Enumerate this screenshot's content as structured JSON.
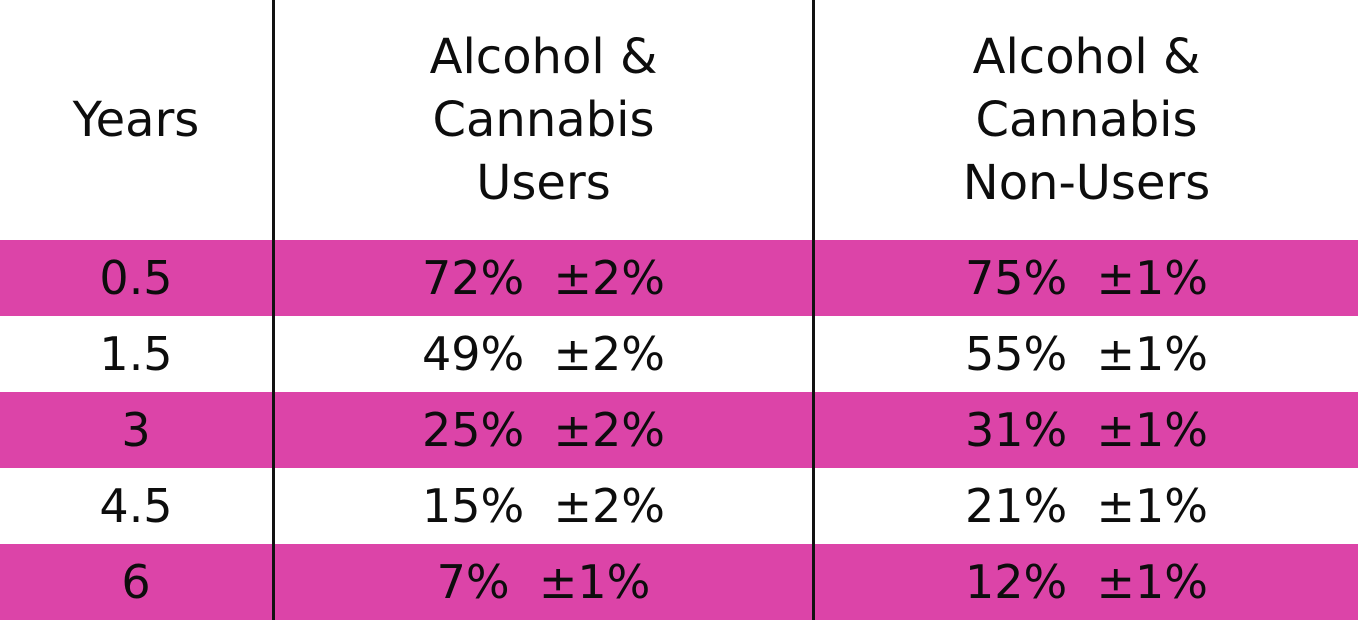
{
  "chart_data": {
    "type": "table",
    "columns": [
      "Years",
      "Alcohol & Cannabis Users",
      "Alcohol & Cannabis Non-Users"
    ],
    "rows": [
      {
        "years": "0.5",
        "users": "72%  ±2%",
        "nonusers": "75%  ±1%",
        "highlight": true
      },
      {
        "years": "1.5",
        "users": "49%  ±2%",
        "nonusers": "55%  ±1%",
        "highlight": false
      },
      {
        "years": "3",
        "users": "25%  ±2%",
        "nonusers": "31%  ±1%",
        "highlight": true
      },
      {
        "years": "4.5",
        "users": "15%  ±2%",
        "nonusers": "21%  ±1%",
        "highlight": false
      },
      {
        "years": "6",
        "users": "7%  ±1%",
        "nonusers": "12%  ±1%",
        "highlight": true
      }
    ],
    "values": {
      "years": [
        0.5,
        1.5,
        3,
        4.5,
        6
      ],
      "users_pct": [
        72,
        49,
        25,
        15,
        7
      ],
      "users_err": [
        2,
        2,
        2,
        2,
        1
      ],
      "nonusers_pct": [
        75,
        55,
        31,
        21,
        12
      ],
      "nonusers_err": [
        1,
        1,
        1,
        1,
        1
      ]
    }
  },
  "header": {
    "years": "Years",
    "users_line1": "Alcohol &",
    "users_line2": "Cannabis",
    "users_line3": "Users",
    "nonusers_line1": "Alcohol &",
    "nonusers_line2": "Cannabis",
    "nonusers_line3": "Non-Users"
  },
  "colors": {
    "row_highlight": "#dc44a8",
    "background": "#ffffff",
    "text": "#0d0d0d",
    "divider": "#111111"
  }
}
